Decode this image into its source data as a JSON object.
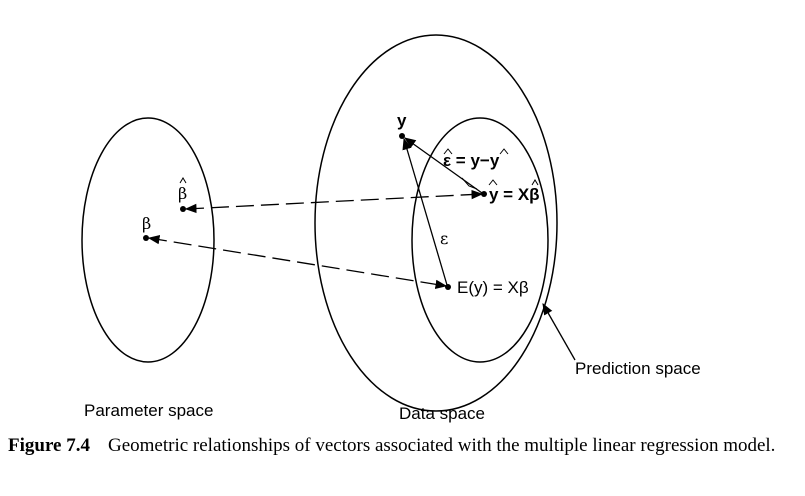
{
  "diagram": {
    "labels": {
      "parameter_space": "Parameter space",
      "data_space": "Data space",
      "prediction_space": "Prediction space",
      "beta_hat": "β",
      "beta": "β",
      "y": "y",
      "epsilon": "ε",
      "epsilon_hat_eq": "ε = y−y",
      "y_hat_eq": "y = Xβ",
      "expected_y_eq": "E(y) = Xβ"
    }
  },
  "caption": {
    "label": "Figure 7.4",
    "text": "Geometric relationships of vectors associated with the multiple linear regression model."
  }
}
